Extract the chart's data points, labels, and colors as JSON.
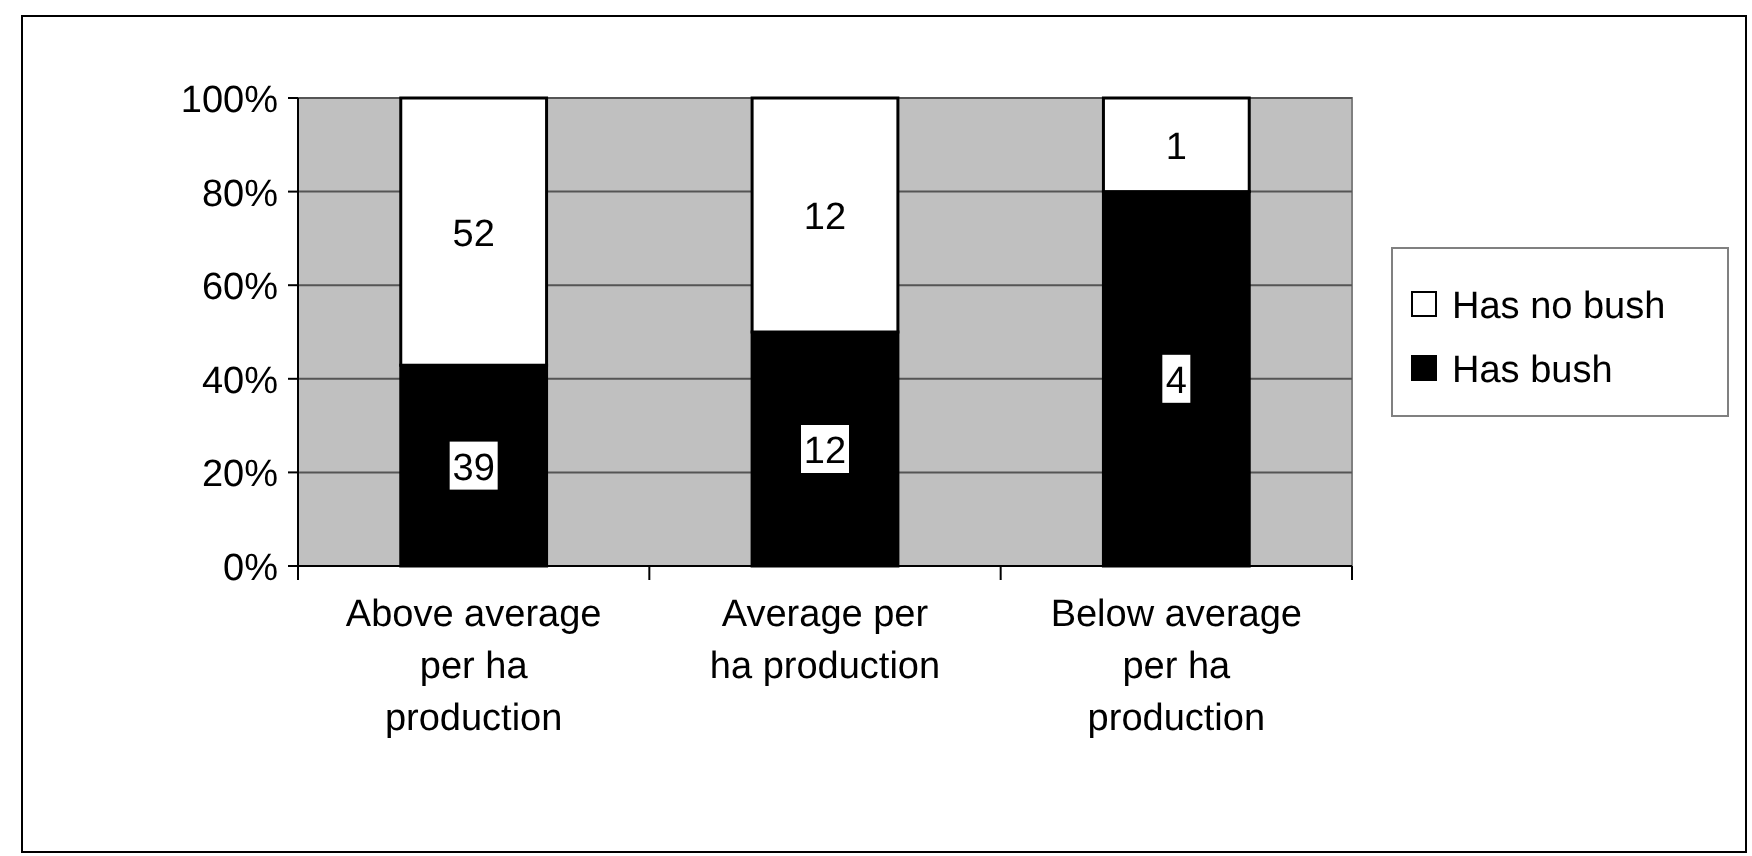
{
  "chart_data": {
    "type": "bar",
    "stacked": true,
    "categories": [
      "Above average per ha production",
      "Average per ha production",
      "Below average per ha production"
    ],
    "series": [
      {
        "name": "Has bush",
        "color": "#000000",
        "values": [
          42.9,
          50,
          80
        ]
      },
      {
        "name": "Has no bush",
        "color": "#ffffff",
        "values": [
          57.1,
          50,
          20
        ]
      }
    ],
    "annotations": [
      {
        "text": "39",
        "x": "Above average per ha production",
        "y": 21.45
      },
      {
        "text": "12",
        "x": "Average per ha production",
        "y": 25
      },
      {
        "text": "4",
        "x": "Below average per ha production",
        "y": 40
      },
      {
        "text": "52",
        "x": "Above average per ha production",
        "y": 71.45
      },
      {
        "text": "12",
        "x": "Average per ha production",
        "y": 75
      },
      {
        "text": "1",
        "x": "Below average per ha production",
        "y": 90
      }
    ],
    "ylim": [
      0,
      100
    ],
    "yticks": [
      {
        "value": 0,
        "label": "0%"
      },
      {
        "value": 20,
        "label": "20%"
      },
      {
        "value": 40,
        "label": "40%"
      },
      {
        "value": 60,
        "label": "60%"
      },
      {
        "value": 80,
        "label": "80%"
      },
      {
        "value": 100,
        "label": "100%"
      }
    ],
    "grid": "y",
    "legend": "right"
  }
}
